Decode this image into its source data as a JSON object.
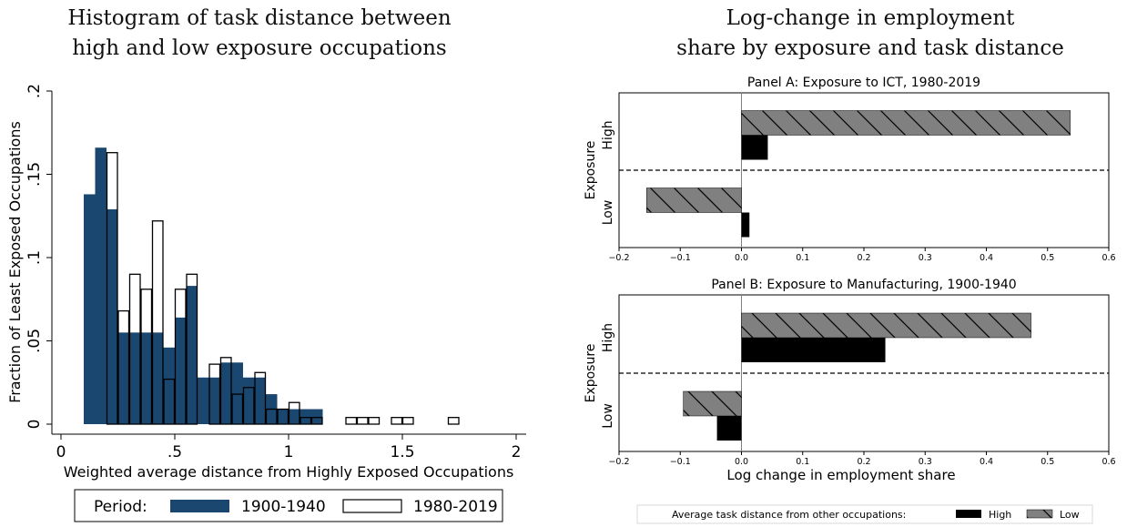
{
  "left": {
    "title_line1": "Histogram of task distance between",
    "title_line2": "high and low exposure occupations"
  },
  "right": {
    "title_line1": "Log-change in employment",
    "title_line2": "share by exposure and task distance"
  },
  "chart_data": [
    {
      "type": "bar",
      "subtype": "histogram",
      "xlabel": "Weighted average distance from Highly Exposed Occupations",
      "ylabel": "Fraction of Least Exposed Occupations",
      "xlim": [
        0,
        2
      ],
      "ylim": [
        0,
        0.2
      ],
      "x_ticks": [
        "0",
        ".5",
        "1",
        "1.5",
        "2"
      ],
      "y_ticks": [
        "0",
        ".05",
        ".1",
        ".15",
        ".2"
      ],
      "bin_width": 0.05,
      "legend": {
        "prefix": "Period:",
        "position": "bottom",
        "entries": [
          "1900-1940",
          "1980-2019"
        ]
      },
      "series": [
        {
          "name": "1900-1940",
          "color": "#1a476f",
          "fill": "solid",
          "bins": [
            {
              "x0": 0.1,
              "y": 0.138
            },
            {
              "x0": 0.15,
              "y": 0.166
            },
            {
              "x0": 0.2,
              "y": 0.129
            },
            {
              "x0": 0.25,
              "y": 0.055
            },
            {
              "x0": 0.3,
              "y": 0.055
            },
            {
              "x0": 0.35,
              "y": 0.055
            },
            {
              "x0": 0.4,
              "y": 0.055
            },
            {
              "x0": 0.45,
              "y": 0.046
            },
            {
              "x0": 0.5,
              "y": 0.064
            },
            {
              "x0": 0.55,
              "y": 0.083
            },
            {
              "x0": 0.6,
              "y": 0.028
            },
            {
              "x0": 0.65,
              "y": 0.028
            },
            {
              "x0": 0.7,
              "y": 0.037
            },
            {
              "x0": 0.75,
              "y": 0.037
            },
            {
              "x0": 0.8,
              "y": 0.028
            },
            {
              "x0": 0.85,
              "y": 0.028
            },
            {
              "x0": 0.9,
              "y": 0.018
            },
            {
              "x0": 0.95,
              "y": 0.009
            },
            {
              "x0": 1.0,
              "y": 0.009
            },
            {
              "x0": 1.05,
              "y": 0.009
            },
            {
              "x0": 1.1,
              "y": 0.009
            }
          ]
        },
        {
          "name": "1980-2019",
          "color": "#000000",
          "fill": "hollow",
          "bins": [
            {
              "x0": 0.2,
              "y": 0.163
            },
            {
              "x0": 0.25,
              "y": 0.068
            },
            {
              "x0": 0.3,
              "y": 0.09
            },
            {
              "x0": 0.35,
              "y": 0.081
            },
            {
              "x0": 0.4,
              "y": 0.122
            },
            {
              "x0": 0.45,
              "y": 0.027
            },
            {
              "x0": 0.5,
              "y": 0.081
            },
            {
              "x0": 0.55,
              "y": 0.09
            },
            {
              "x0": 0.6,
              "y": 0.0
            },
            {
              "x0": 0.65,
              "y": 0.036
            },
            {
              "x0": 0.7,
              "y": 0.04
            },
            {
              "x0": 0.75,
              "y": 0.018
            },
            {
              "x0": 0.8,
              "y": 0.022
            },
            {
              "x0": 0.85,
              "y": 0.031
            },
            {
              "x0": 0.9,
              "y": 0.009
            },
            {
              "x0": 0.95,
              "y": 0.009
            },
            {
              "x0": 1.0,
              "y": 0.013
            },
            {
              "x0": 1.05,
              "y": 0.004
            },
            {
              "x0": 1.1,
              "y": 0.004
            },
            {
              "x0": 1.25,
              "y": 0.004
            },
            {
              "x0": 1.3,
              "y": 0.004
            },
            {
              "x0": 1.35,
              "y": 0.004
            },
            {
              "x0": 1.45,
              "y": 0.004
            },
            {
              "x0": 1.5,
              "y": 0.004
            },
            {
              "x0": 1.7,
              "y": 0.004
            }
          ]
        }
      ]
    },
    {
      "type": "bar",
      "subtype": "horizontal-grouped",
      "title": "Panel A: Exposure to ICT, 1980-2019",
      "ylabel": "Exposure",
      "categories": [
        "High",
        "Low"
      ],
      "xlim": [
        -0.2,
        0.6
      ],
      "x_ticks": [
        "−0.2",
        "−0.1",
        "0.0",
        "0.1",
        "0.2",
        "0.3",
        "0.4",
        "0.5",
        "0.6"
      ],
      "series": [
        {
          "name": "Low",
          "values": [
            0.537,
            -0.155
          ]
        },
        {
          "name": "High",
          "values": [
            0.043,
            0.013
          ]
        }
      ]
    },
    {
      "type": "bar",
      "subtype": "horizontal-grouped",
      "title": "Panel B: Exposure to Manufacturing, 1900-1940",
      "ylabel": "Exposure",
      "xlabel": "Log change in employment share",
      "categories": [
        "High",
        "Low"
      ],
      "xlim": [
        -0.2,
        0.6
      ],
      "x_ticks": [
        "−0.2",
        "−0.1",
        "0.0",
        "0.1",
        "0.2",
        "0.3",
        "0.4",
        "0.5",
        "0.6"
      ],
      "series": [
        {
          "name": "Low",
          "values": [
            0.473,
            -0.095
          ]
        },
        {
          "name": "High",
          "values": [
            0.235,
            -0.04
          ]
        }
      ]
    }
  ],
  "right_legend": {
    "prefix": "Average task distance from other occupations:",
    "entries": [
      "High",
      "Low"
    ]
  }
}
